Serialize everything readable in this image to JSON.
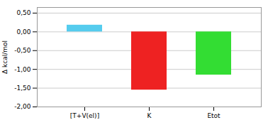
{
  "chart_data": {
    "type": "bar",
    "categories": [
      "[T+V(el)]",
      "K",
      "Etot"
    ],
    "values": [
      0.18,
      -1.55,
      -1.15
    ],
    "colors": [
      "#55ccee",
      "#ee2222",
      "#33dd33"
    ],
    "ylabel": "Δ kcal/mol",
    "ylim": [
      -2.0,
      0.65
    ],
    "yticks": [
      {
        "value": 0.5,
        "label": "0,50"
      },
      {
        "value": 0.0,
        "label": "0,00"
      },
      {
        "value": -0.5,
        "label": "-0,50"
      },
      {
        "value": -1.0,
        "label": "-1,00"
      },
      {
        "value": -1.5,
        "label": "-1,50"
      },
      {
        "value": -2.0,
        "label": "-2,00"
      }
    ],
    "grid": true
  }
}
